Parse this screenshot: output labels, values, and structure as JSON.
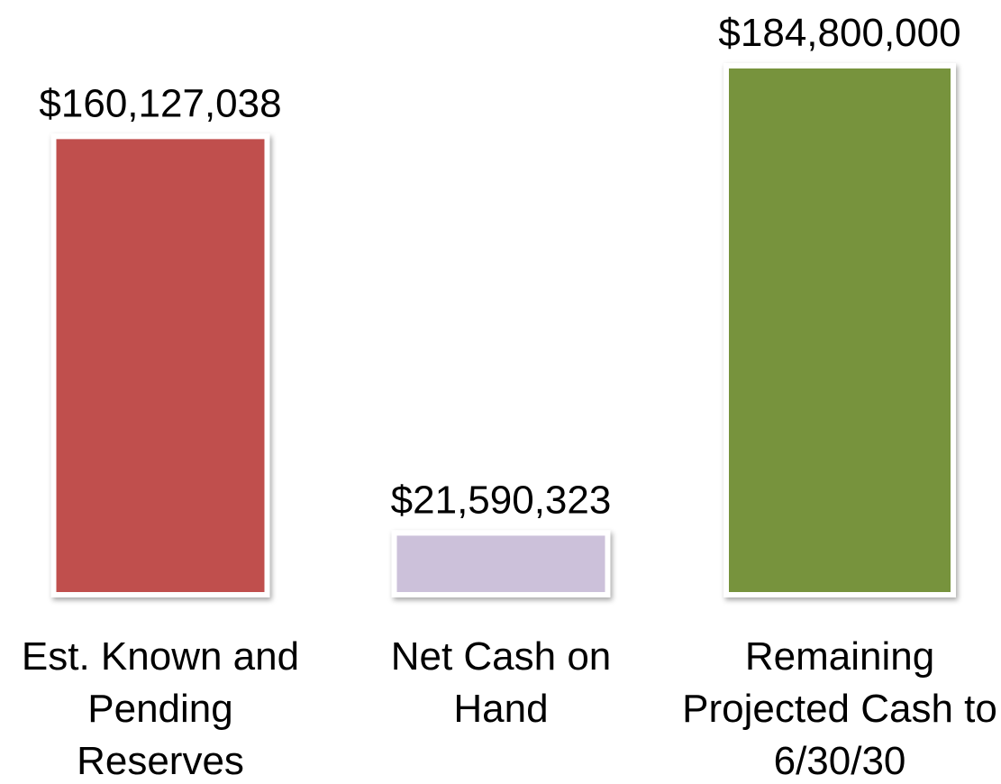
{
  "chart_data": {
    "type": "bar",
    "categories": [
      "Est. Known and Pending Reserves",
      "Net Cash on Hand",
      "Remaining Projected Cash to 6/30/30"
    ],
    "values": [
      160127038,
      21590323,
      184800000
    ],
    "value_labels": [
      "$160,127,038",
      "$21,590,323",
      "$184,800,000"
    ],
    "colors": [
      "#c0504d",
      "#ccc1da",
      "#77933c"
    ]
  }
}
